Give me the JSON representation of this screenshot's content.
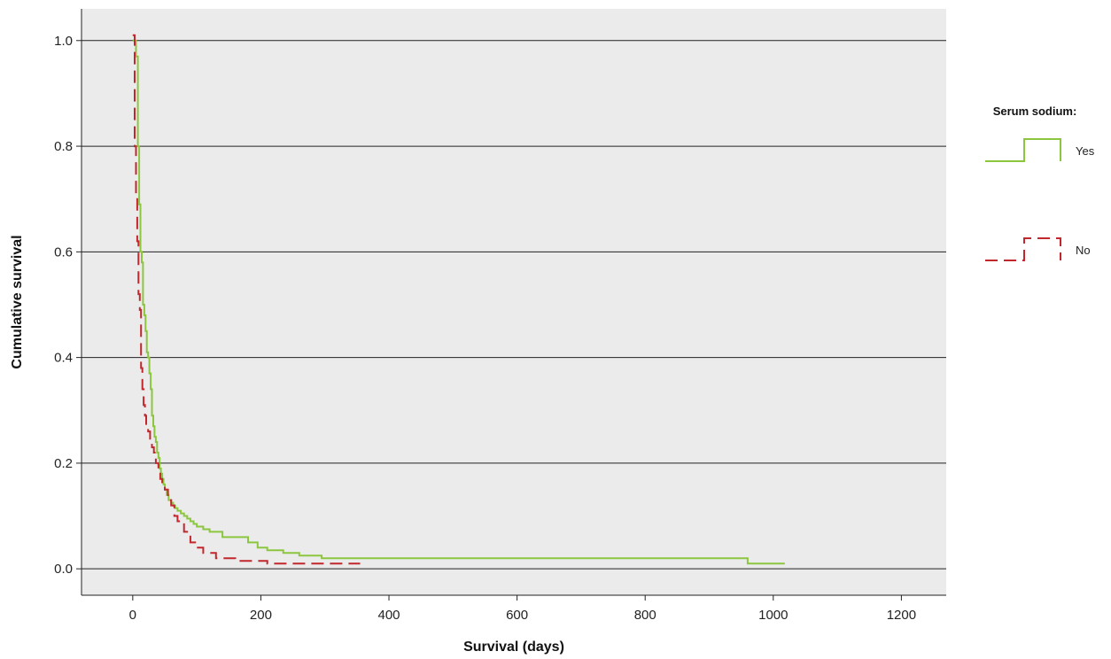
{
  "chart_data": {
    "type": "line",
    "step": true,
    "title": "",
    "xlabel": "Survival (days)",
    "ylabel": "Cumulative survival",
    "xlim": [
      -80,
      1270
    ],
    "ylim": [
      -0.05,
      1.06
    ],
    "xticks": [
      0,
      200,
      400,
      600,
      800,
      1000,
      1200
    ],
    "xtick_labels": [
      "0",
      "200",
      "400",
      "600",
      "800",
      "1000",
      "1200"
    ],
    "yticks": [
      0.0,
      0.2,
      0.4,
      0.6,
      0.8,
      1.0
    ],
    "ytick_labels": [
      "0.0",
      "0.2",
      "0.4",
      "0.6",
      "0.8",
      "1.0"
    ],
    "grid": "horizontal",
    "plot_background": "#ebebeb",
    "legend": {
      "title": "Serum sodium:",
      "placement": "right"
    },
    "series": [
      {
        "name": "Yes",
        "color": "#8cc63f",
        "dash": "solid",
        "x": [
          0,
          5,
          8,
          10,
          12,
          14,
          16,
          18,
          20,
          22,
          24,
          26,
          28,
          30,
          32,
          34,
          36,
          38,
          40,
          42,
          44,
          46,
          48,
          50,
          53,
          56,
          60,
          63,
          66,
          70,
          75,
          80,
          85,
          90,
          95,
          100,
          110,
          120,
          140,
          180,
          195,
          210,
          235,
          260,
          295,
          960,
          1018
        ],
        "y": [
          1.0,
          0.97,
          0.8,
          0.69,
          0.6,
          0.58,
          0.5,
          0.48,
          0.45,
          0.41,
          0.4,
          0.37,
          0.34,
          0.29,
          0.27,
          0.25,
          0.24,
          0.22,
          0.21,
          0.19,
          0.18,
          0.17,
          0.16,
          0.15,
          0.14,
          0.13,
          0.125,
          0.12,
          0.115,
          0.11,
          0.105,
          0.1,
          0.095,
          0.09,
          0.085,
          0.08,
          0.075,
          0.07,
          0.06,
          0.05,
          0.04,
          0.035,
          0.03,
          0.025,
          0.02,
          0.01,
          0.01
        ]
      },
      {
        "name": "No",
        "color": "#c1272d",
        "dash": "dashed",
        "x": [
          0,
          3,
          5,
          7,
          9,
          11,
          13,
          15,
          17,
          19,
          21,
          24,
          27,
          30,
          33,
          36,
          40,
          43,
          46,
          50,
          55,
          60,
          65,
          70,
          80,
          90,
          100,
          110,
          130,
          160,
          210,
          355
        ],
        "y": [
          1.01,
          0.8,
          0.7,
          0.62,
          0.52,
          0.49,
          0.38,
          0.34,
          0.31,
          0.29,
          0.27,
          0.26,
          0.24,
          0.23,
          0.22,
          0.2,
          0.19,
          0.17,
          0.16,
          0.15,
          0.13,
          0.12,
          0.1,
          0.09,
          0.07,
          0.05,
          0.04,
          0.03,
          0.02,
          0.015,
          0.01,
          0.01
        ]
      }
    ]
  }
}
